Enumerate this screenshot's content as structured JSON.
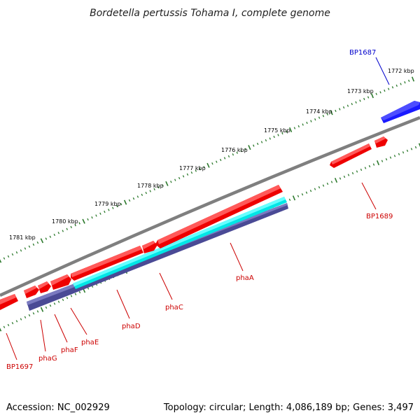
{
  "title": "Bordetella pertussis Tohama I, complete genome",
  "footer": {
    "accession": "Accession: NC_002929",
    "summary": "Topology: circular; Length: 4,086,189 bp; Genes: 3,497"
  },
  "colors": {
    "backbone": "#7f7f7f",
    "forward_gene": "#ff0000",
    "reverse_gene": "#0000ff",
    "cyan_track": "#00ffff",
    "purple_track": "#4a4a95",
    "tick": "#2d7a2d",
    "gene_label_red": "#cc0000",
    "gene_label_blue": "#0000cc"
  },
  "kbp_labels": [
    "1772 kbp",
    "1773 kbp",
    "1774 kbp",
    "1775 kbp",
    "1776 kbp",
    "1777 kbp",
    "1778 kbp",
    "1779 kbp",
    "1780 kbp",
    "1781 kbp"
  ],
  "gene_labels": [
    {
      "text": "BP1687",
      "color": "#0000cc"
    },
    {
      "text": "BP1689",
      "color": "#cc0000"
    },
    {
      "text": "phaA",
      "color": "#cc0000"
    },
    {
      "text": "phaC",
      "color": "#cc0000"
    },
    {
      "text": "phaD",
      "color": "#cc0000"
    },
    {
      "text": "phaE",
      "color": "#cc0000"
    },
    {
      "text": "phaF",
      "color": "#cc0000"
    },
    {
      "text": "phaG",
      "color": "#cc0000"
    },
    {
      "text": "BP1697",
      "color": "#cc0000"
    }
  ]
}
